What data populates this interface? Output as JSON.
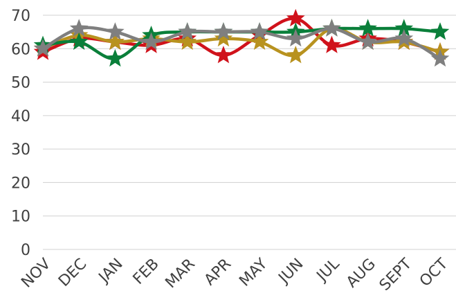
{
  "chart_data": {
    "type": "line",
    "categories": [
      "NOV",
      "DEC",
      "JAN",
      "FEB",
      "MAR",
      "APR",
      "MAY",
      "JUN",
      "JUL",
      "AUG",
      "SEPT",
      "OCT"
    ],
    "ylim": [
      0,
      70
    ],
    "yticks": [
      0,
      10,
      20,
      30,
      40,
      50,
      60,
      70
    ],
    "grid": true,
    "smooth": true,
    "marker": "star",
    "series": [
      {
        "color": "#d0121b",
        "values": [
          59,
          63,
          62,
          61,
          63,
          58,
          64,
          69,
          61,
          63,
          62,
          59
        ]
      },
      {
        "color": "#b8921f",
        "values": [
          60,
          64,
          62,
          63,
          62,
          63,
          62,
          58,
          66,
          62,
          62,
          59
        ]
      },
      {
        "color": "#0a7f3a",
        "values": [
          61,
          62,
          57,
          64,
          65,
          65,
          65,
          65,
          66,
          66,
          66,
          65
        ]
      },
      {
        "color": "#7f7f7f",
        "values": [
          60,
          66,
          65,
          62,
          65,
          65,
          65,
          63,
          66,
          62,
          63,
          57
        ]
      }
    ]
  }
}
